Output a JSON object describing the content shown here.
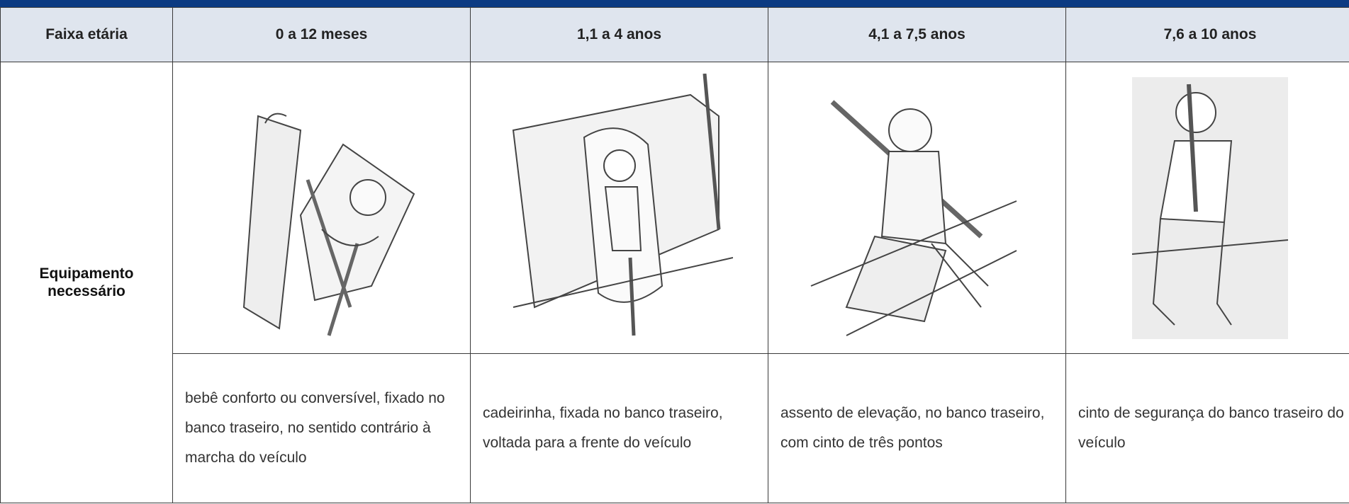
{
  "table": {
    "header": [
      "Faixa etária",
      "0 a 12 meses",
      "1,1 a 4 anos",
      "4,1 a 7,5 anos",
      "7,6 a 10 anos"
    ],
    "row_label": "Equipamento necessário",
    "descriptions": [
      "bebê conforto ou conversível, fixado no banco traseiro, no sentido contrário à marcha do veículo",
      "cadeirinha, fixada no banco traseiro, voltada para a frente do veículo",
      "assento de elevação, no banco traseiro, com cinto de três pontos",
      "cinto de segurança do banco traseiro do veículo"
    ]
  }
}
